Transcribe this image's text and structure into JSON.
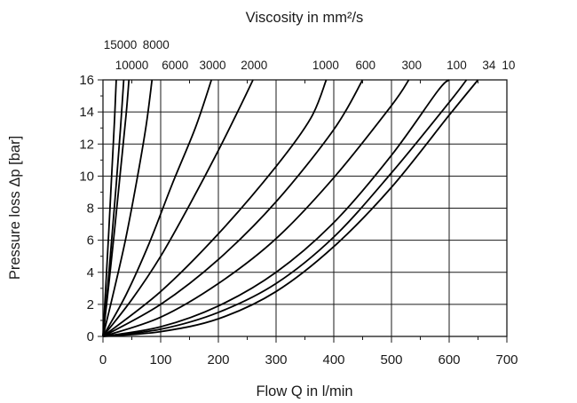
{
  "chart_data": {
    "type": "line",
    "title": "Viscosity in mm²/s",
    "xlabel": "Flow Q in l/min",
    "ylabel": "Pressure loss Δp [bar]",
    "xlim": [
      0,
      700
    ],
    "ylim": [
      0,
      16
    ],
    "x_ticks": [
      "0",
      "100",
      "200",
      "300",
      "400",
      "500",
      "600",
      "700"
    ],
    "y_ticks": [
      "0",
      "2",
      "4",
      "6",
      "8",
      "10",
      "12",
      "14",
      "16"
    ],
    "grid": true,
    "series": [
      {
        "name": "15000",
        "points": [
          [
            0,
            0
          ],
          [
            5,
            3.2
          ],
          [
            10,
            6.5
          ],
          [
            15,
            10
          ],
          [
            20,
            13.5
          ],
          [
            23,
            16
          ]
        ]
      },
      {
        "name": "10000",
        "points": [
          [
            0,
            0
          ],
          [
            8,
            3.0
          ],
          [
            15,
            6
          ],
          [
            23,
            9.5
          ],
          [
            30,
            12.8
          ],
          [
            36,
            16
          ]
        ]
      },
      {
        "name": "8000",
        "points": [
          [
            0,
            0
          ],
          [
            10,
            3.2
          ],
          [
            20,
            6.6
          ],
          [
            30,
            10.2
          ],
          [
            40,
            13.8
          ],
          [
            45,
            16
          ]
        ]
      },
      {
        "name": "6000",
        "points": [
          [
            0,
            0
          ],
          [
            20,
            3.0
          ],
          [
            40,
            6.2
          ],
          [
            60,
            10
          ],
          [
            75,
            13.2
          ],
          [
            85,
            16
          ]
        ]
      },
      {
        "name": "3000",
        "points": [
          [
            0,
            0
          ],
          [
            40,
            2.6
          ],
          [
            80,
            5.8
          ],
          [
            120,
            9.5
          ],
          [
            160,
            13
          ],
          [
            188,
            16
          ]
        ]
      },
      {
        "name": "2000",
        "points": [
          [
            0,
            0
          ],
          [
            50,
            2.3
          ],
          [
            100,
            5.0
          ],
          [
            150,
            8.2
          ],
          [
            200,
            11.6
          ],
          [
            240,
            14.5
          ],
          [
            260,
            16
          ]
        ]
      },
      {
        "name": "1000",
        "points": [
          [
            0,
            0
          ],
          [
            100,
            2.8
          ],
          [
            200,
            6.4
          ],
          [
            300,
            10.6
          ],
          [
            360,
            13.6
          ],
          [
            387,
            16
          ]
        ]
      },
      {
        "name": "600",
        "points": [
          [
            0,
            0
          ],
          [
            100,
            2.0
          ],
          [
            200,
            4.8
          ],
          [
            300,
            8.4
          ],
          [
            400,
            12.9
          ],
          [
            450,
            16
          ]
        ]
      },
      {
        "name": "300",
        "points": [
          [
            0,
            0
          ],
          [
            100,
            1.2
          ],
          [
            200,
            3.3
          ],
          [
            300,
            6.1
          ],
          [
            400,
            9.9
          ],
          [
            500,
            14.4
          ],
          [
            530,
            16
          ]
        ]
      },
      {
        "name": "100",
        "points": [
          [
            0,
            0
          ],
          [
            100,
            0.6
          ],
          [
            200,
            1.9
          ],
          [
            300,
            4.0
          ],
          [
            400,
            7.1
          ],
          [
            500,
            11.3
          ],
          [
            580,
            15.3
          ],
          [
            600,
            16
          ]
        ]
      },
      {
        "name": "34",
        "points": [
          [
            0,
            0
          ],
          [
            100,
            0.45
          ],
          [
            200,
            1.5
          ],
          [
            300,
            3.3
          ],
          [
            400,
            6.2
          ],
          [
            500,
            10.2
          ],
          [
            600,
            14.6
          ],
          [
            630,
            16
          ]
        ]
      },
      {
        "name": "10",
        "points": [
          [
            0,
            0
          ],
          [
            100,
            0.3
          ],
          [
            200,
            1.1
          ],
          [
            300,
            2.8
          ],
          [
            400,
            5.6
          ],
          [
            500,
            9.3
          ],
          [
            600,
            13.8
          ],
          [
            650,
            16
          ]
        ]
      }
    ],
    "viscosity_labels": [
      {
        "text": "15000",
        "row": 1,
        "x": 30
      },
      {
        "text": "8000",
        "row": 1,
        "x": 92
      },
      {
        "text": "10000",
        "row": 2,
        "x": 50
      },
      {
        "text": "6000",
        "row": 2,
        "x": 125
      },
      {
        "text": "3000",
        "row": 2,
        "x": 190
      },
      {
        "text": "2000",
        "row": 2,
        "x": 262
      },
      {
        "text": "1000",
        "row": 2,
        "x": 386
      },
      {
        "text": "600",
        "row": 2,
        "x": 455
      },
      {
        "text": "300",
        "row": 2,
        "x": 535
      },
      {
        "text": "100",
        "row": 2,
        "x": 613
      },
      {
        "text": "34",
        "row": 2,
        "x": 669
      },
      {
        "text": "10",
        "row": 2,
        "x": 703
      }
    ]
  }
}
